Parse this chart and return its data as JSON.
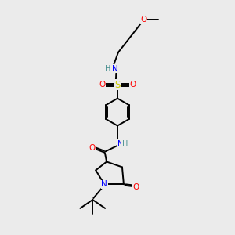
{
  "bg_color": "#ebebeb",
  "bond_color": "#000000",
  "atom_colors": {
    "N": "#0000ff",
    "O": "#ff0000",
    "S": "#cccc00",
    "H": "#4a9090",
    "C": "#000000"
  },
  "figsize": [
    3.0,
    3.0
  ],
  "dpi": 100
}
